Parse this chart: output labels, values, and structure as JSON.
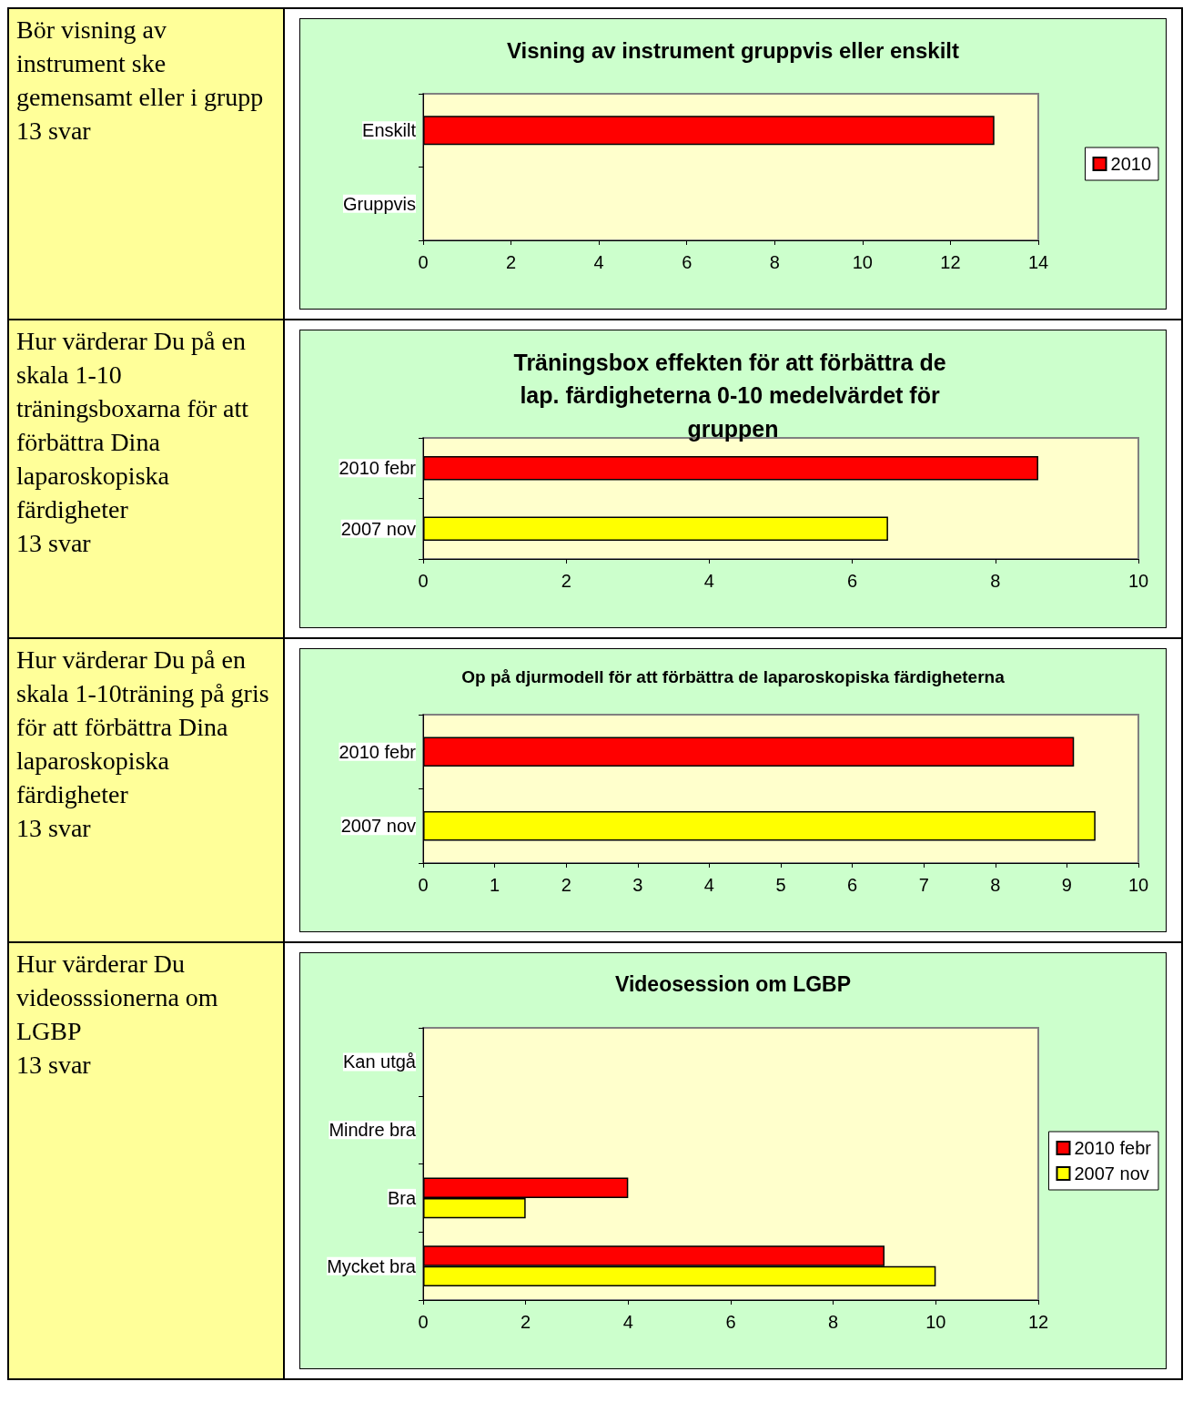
{
  "chart_data": [
    {
      "type": "bar",
      "orientation": "horizontal",
      "title": "Visning av instrument gruppvis eller enskilt",
      "annotations": [
        "Bör visning av instrument ske gemensamt eller i grupp",
        "13 svar"
      ],
      "categories": [
        "Enskilt",
        "Gruppvis"
      ],
      "series": [
        {
          "name": "2010",
          "color": "#ff0000",
          "values": [
            13,
            null
          ]
        }
      ],
      "xlim": [
        0,
        14
      ],
      "xticks": [
        0,
        2,
        4,
        6,
        8,
        10,
        12,
        14
      ],
      "legend": "right",
      "grid": false
    },
    {
      "type": "bar",
      "orientation": "horizontal",
      "title": "Träningsbox effekten för att förbättra de lap. färdigheterna 0-10 medelvärdet för gruppen",
      "annotations": [
        "Hur värderar Du på en skala 1-10 träningsboxarna för att förbättra Dina laparoskopiska färdigheter",
        "13 svar"
      ],
      "categories": [
        "2010 febr",
        "2007 nov"
      ],
      "values": [
        8.6,
        6.5
      ],
      "colors": [
        "#ff0000",
        "#ffff00"
      ],
      "xlim": [
        0,
        10
      ],
      "xticks": [
        0,
        2,
        4,
        6,
        8,
        10
      ],
      "legend": false,
      "grid": false
    },
    {
      "type": "bar",
      "orientation": "horizontal",
      "title": "Op på djurmodell för att förbättra de laparoskopiska färdigheterna",
      "annotations": [
        "Hur värderar Du på en skala 1-10träning på gris för att förbättra Dina laparoskopiska färdigheter",
        "13 svar"
      ],
      "categories": [
        "2010 febr",
        "2007 nov"
      ],
      "values": [
        9.1,
        9.4
      ],
      "colors": [
        "#ff0000",
        "#ffff00"
      ],
      "xlim": [
        0,
        10
      ],
      "xticks": [
        0,
        1,
        2,
        3,
        4,
        5,
        6,
        7,
        8,
        9,
        10
      ],
      "legend": false,
      "grid": false
    },
    {
      "type": "bar",
      "orientation": "horizontal",
      "title": "Videosession om LGBP",
      "annotations": [
        "Hur värderar Du videosssionerna om LGBP",
        "13 svar"
      ],
      "categories": [
        "Kan utgå",
        "Mindre bra",
        "Bra",
        "Mycket bra"
      ],
      "series": [
        {
          "name": "2010 febr",
          "color": "#ff0000",
          "values": [
            null,
            null,
            4,
            9
          ]
        },
        {
          "name": "2007 nov",
          "color": "#ffff00",
          "values": [
            null,
            null,
            2,
            10
          ]
        }
      ],
      "xlim": [
        0,
        12
      ],
      "xticks": [
        0,
        2,
        4,
        6,
        8,
        10,
        12
      ],
      "legend": "right",
      "grid": false
    }
  ]
}
